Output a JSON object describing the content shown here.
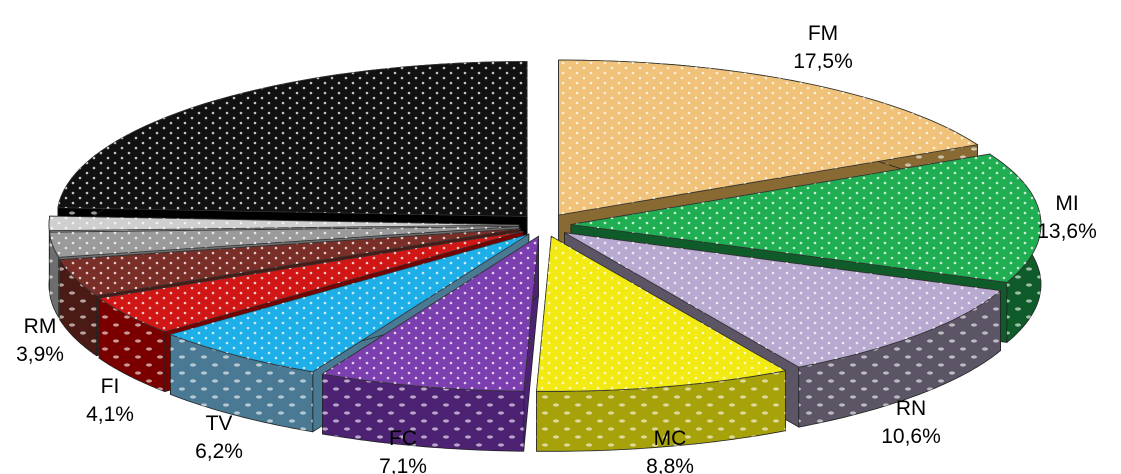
{
  "chart_data": {
    "type": "pie",
    "title": "",
    "style": "exploded 3d pie with dotted pattern fills",
    "slices": [
      {
        "label": "FM",
        "value": 17.5,
        "display": "17,5%",
        "color": "#f0c27a",
        "side_color": "#8a6a33"
      },
      {
        "label": "MI",
        "value": 13.6,
        "display": "13,6%",
        "color": "#1fae52",
        "side_color": "#0f5c2a"
      },
      {
        "label": "RN",
        "value": 10.6,
        "display": "10,6%",
        "color": "#b7a9cf",
        "side_color": "#5b5566"
      },
      {
        "label": "MC",
        "value": 8.8,
        "display": "8,8%",
        "color": "#f2ea12",
        "side_color": "#a8a20a"
      },
      {
        "label": "FC",
        "value": 7.1,
        "display": "7,1%",
        "color": "#7b3fb0",
        "side_color": "#4d2273"
      },
      {
        "label": "TV",
        "value": 6.2,
        "display": "6,2%",
        "color": "#1eaee8",
        "side_color": "#4a7a93"
      },
      {
        "label": "FI",
        "value": 4.1,
        "display": "4,1%",
        "color": "#d11616",
        "side_color": "#7a0000"
      },
      {
        "label": "RM",
        "value": 3.9,
        "display": "3,9%",
        "color": "#7a2e28",
        "side_color": "#4a1a14"
      },
      {
        "label": "",
        "value": 2.6,
        "display": "",
        "color": "#9a9a9a",
        "side_color": "#6e6e6e"
      },
      {
        "label": "",
        "value": 1.5,
        "display": "",
        "color": "#cfcfcf",
        "side_color": "#9a9a9a"
      },
      {
        "label": "",
        "value": 24.1,
        "display": "",
        "color": "#111111",
        "side_color": "#000000"
      }
    ]
  }
}
